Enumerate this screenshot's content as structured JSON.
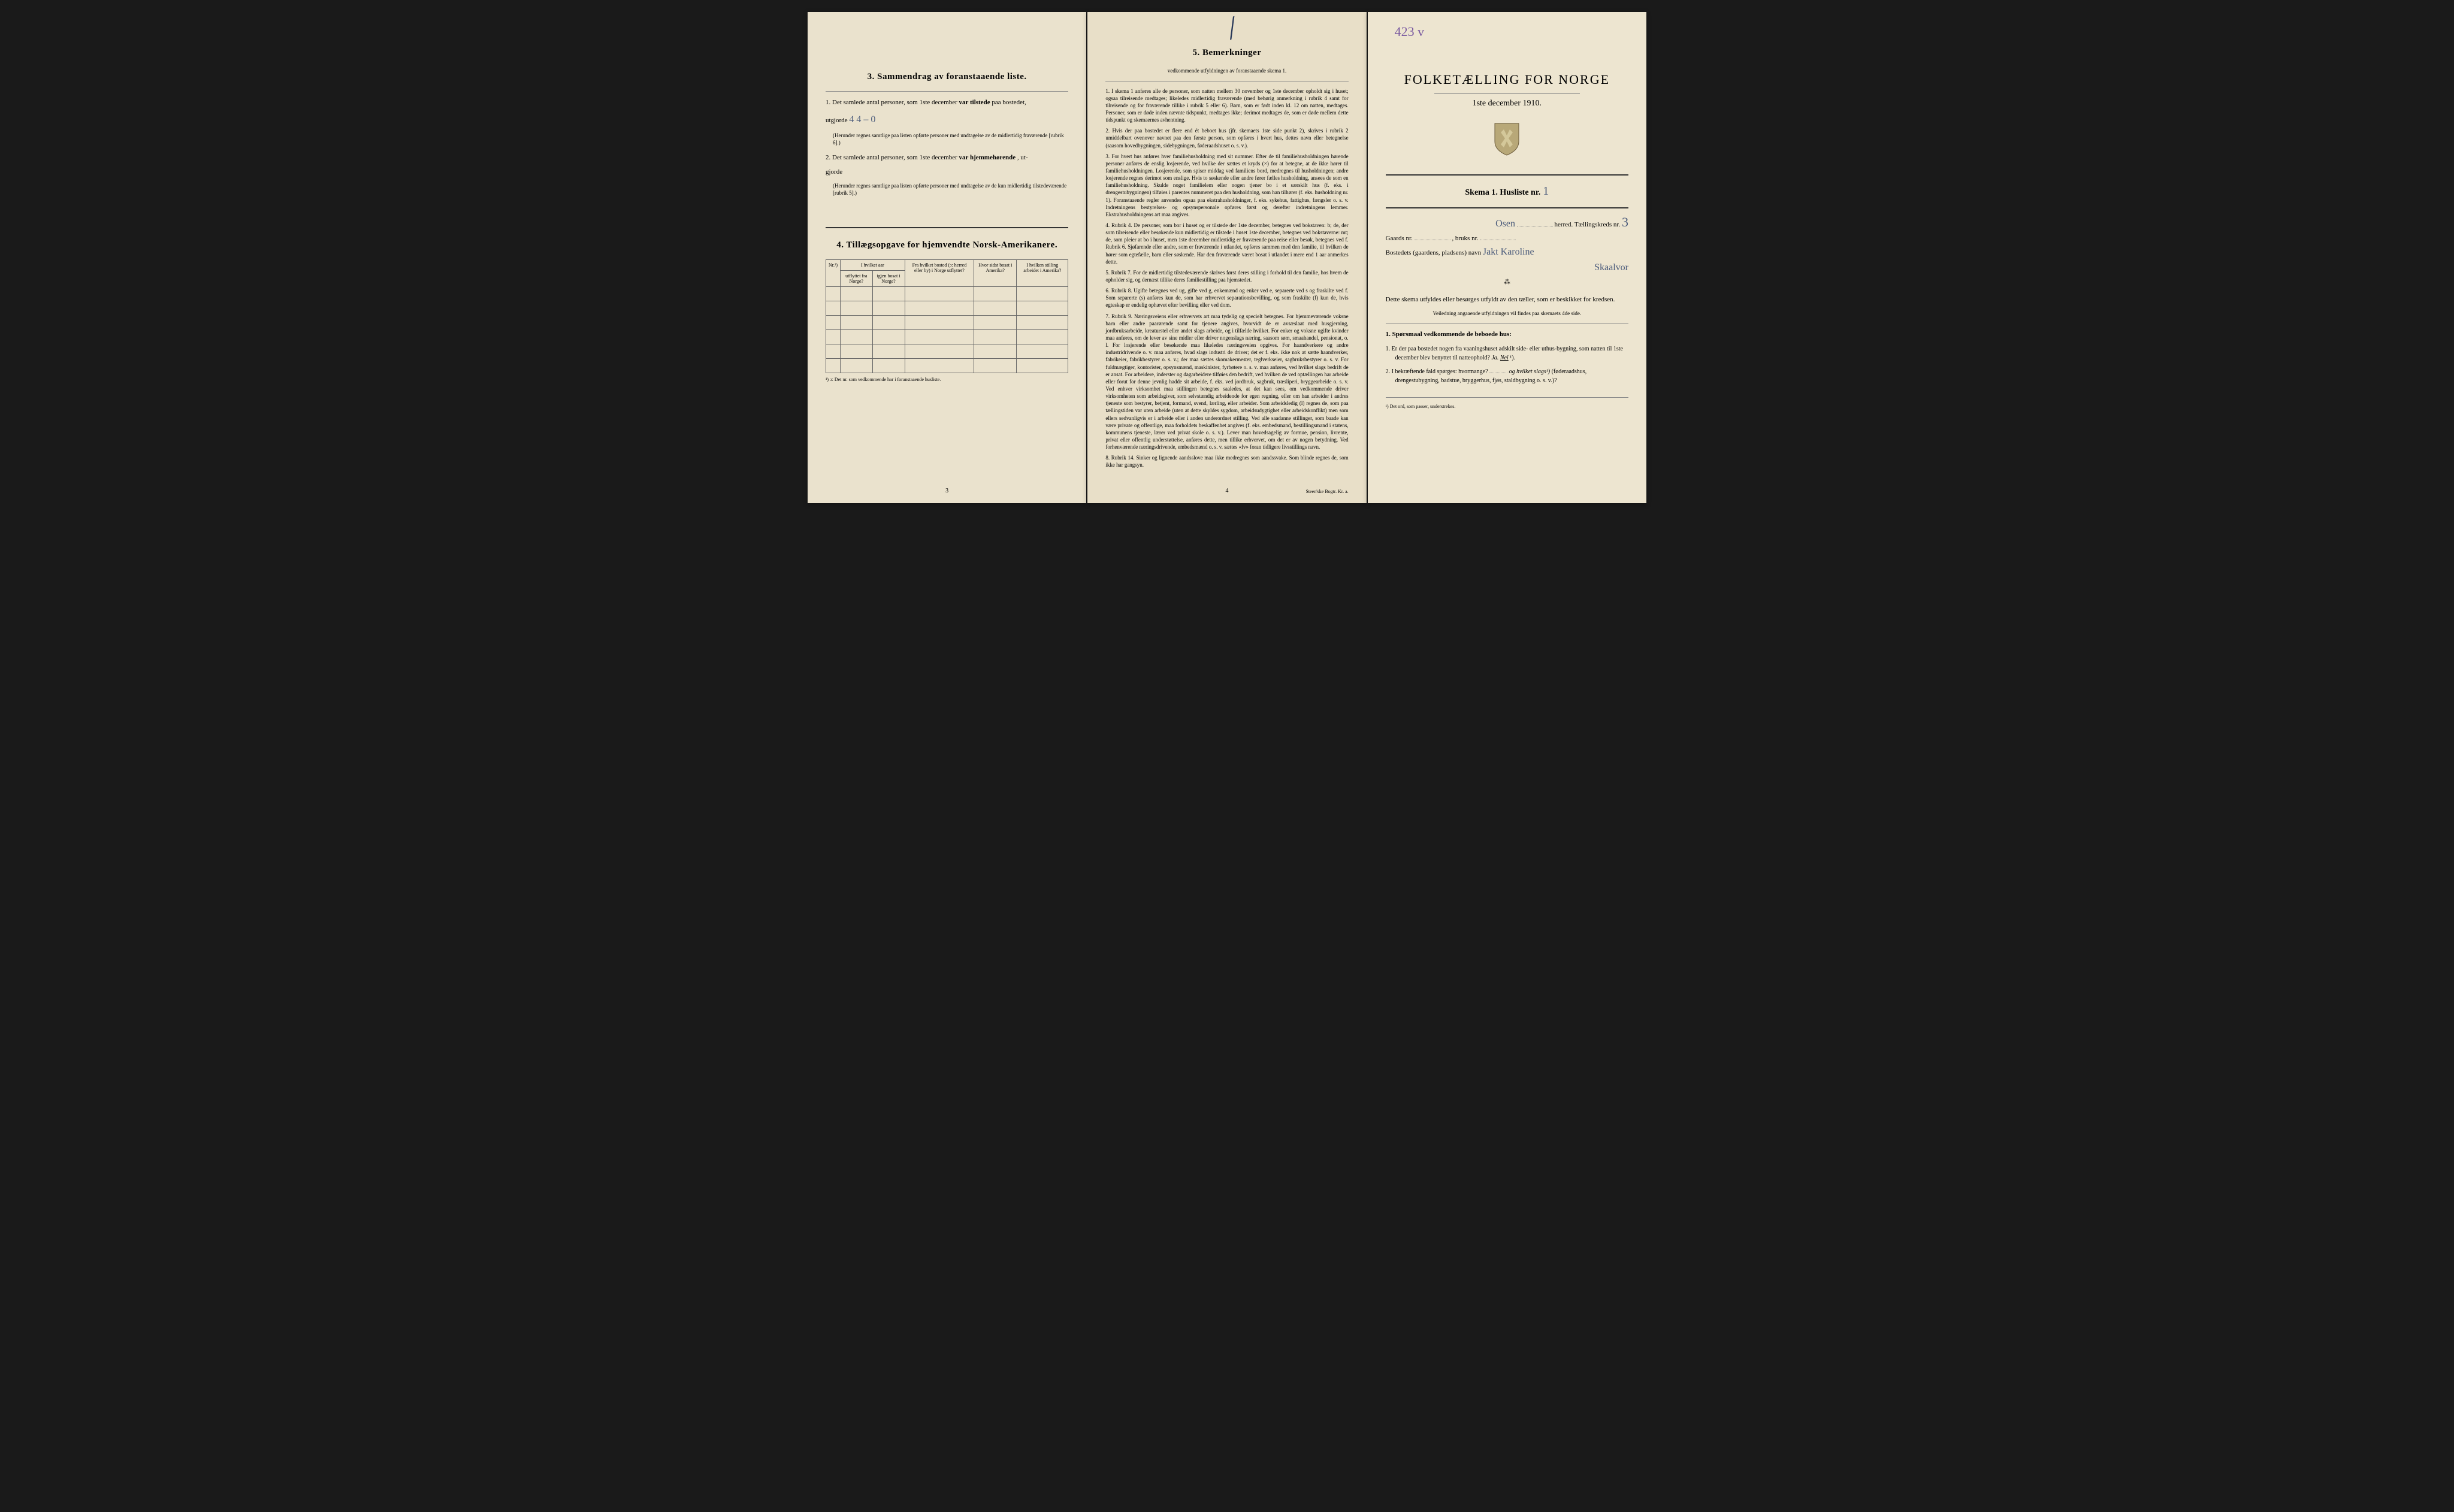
{
  "page1": {
    "section3": {
      "title": "3.  Sammendrag av foranstaaende liste.",
      "item1_pre": "1. Det samlede antal personer, som 1ste december",
      "item1_bold": "var tilstede",
      "item1_post": "paa bostedet,",
      "item1_line2": "utgjorde",
      "handwritten_count": "4   4 – 0",
      "item1_note": "(Herunder regnes samtlige paa listen opførte personer med undtagelse av de midlertidig fraværende [rubrik 6].)",
      "item2_pre": "2. Det samlede antal personer, som 1ste december",
      "item2_bold": "var hjemmehørende",
      "item2_post": ", ut-",
      "item2_line2": "gjorde",
      "item2_note": "(Herunder regnes samtlige paa listen opførte personer med undtagelse av de kun midlertidig tilstedeværende [rubrik 5].)"
    },
    "section4": {
      "title": "4.  Tillægsopgave for hjemvendte Norsk-Amerikanere.",
      "headers": {
        "nr": "Nr.¹)",
        "col1a": "I hvilket aar",
        "col1b": "utflyttet fra Norge?",
        "col1c": "igjen bosat i Norge?",
        "col2": "Fra hvilket bosted (ɔ: herred eller by) i Norge utflyttet?",
        "col3": "Hvor sidst bosat i Amerika?",
        "col4": "I hvilken stilling arbeidet i Amerika?"
      },
      "footnote": "¹) ɔ: Det nr. som vedkommende har i foranstaaende husliste."
    },
    "page_num": "3"
  },
  "page2": {
    "title": "5.  Bemerkninger",
    "subtitle": "vedkommende utfyldningen av foranstaaende skema 1.",
    "rules": [
      "1. I skema 1 anføres alle de personer, som natten mellem 30 november og 1ste december opholdt sig i huset; ogsaa tilreisende medtages; likeledes midlertidig fraværende (med behørig anmerkning i rubrik 4 samt for tilreisende og for fraværende tillike i rubrik 5 eller 6). Barn, som er født inden kl. 12 om natten, medtages. Personer, som er døde inden nævnte tidspunkt, medtages ikke; derimot medtages de, som er døde mellem dette tidspunkt og skemaernes avhentning.",
      "2. Hvis der paa bostedet er flere end ét beboet hus (jfr. skemaets 1ste side punkt 2), skrives i rubrik 2 umiddelbart ovenover navnet paa den første person, som opføres i hvert hus, dettes navn eller betegnelse (saasom hovedbygningen, sidebygningen, føderaadshuset o. s. v.).",
      "3. For hvert hus anføres hver familiehusholdning med sit nummer. Efter de til familiehusholdningen hørende personer anføres de enslig losjerende, ved hvilke der sættes et kryds (×) for at betegne, at de ikke hører til familiehusholdningen. Losjerende, som spiser middag ved familiens bord, medregnes til husholdningen; andre losjerende regnes derimot som enslige. Hvis to søskende eller andre fører fælles husholdning, ansees de som en familiehusholdning. Skulde noget familielem eller nogen tjener bo i et særskilt hus (f. eks. i drengestubygningen) tilføies i parentes nummeret paa den husholdning, som han tilhører (f. eks. husholdning nr. 1). Foranstaaende regler anvendes ogsaa paa ekstrahusholdninger, f. eks. sykehus, fattighus, fængsler o. s. v. Indretningens bestyrelses- og opsynspersonale opføres først og derefter indretningens lemmer. Ekstrahusholdningens art maa angives.",
      "4. Rubrik 4. De personer, som bor i huset og er tilstede der 1ste december, betegnes ved bokstaven: b; de, der som tilreisende eller besøkende kun midlertidig er tilstede i huset 1ste december, betegnes ved bokstaverne: mt; de, som pleier at bo i huset, men 1ste december midlertidig er fraværende paa reise eller besøk, betegnes ved f. Rubrik 6. Sjøfarende eller andre, som er fraværende i utlandet, opføres sammen med den familie, til hvilken de hører som egtefælle, barn eller søskende. Har den fraværende været bosat i utlandet i mere end 1 aar anmerkes dette.",
      "5. Rubrik 7. For de midlertidig tilstedeværende skrives først deres stilling i forhold til den familie, hos hvem de opholder sig, og dernæst tillike deres familiestilling paa hjemstedet.",
      "6. Rubrik 8. Ugifte betegnes ved ug, gifte ved g, enkemænd og enker ved e, separerte ved s og fraskilte ved f. Som separerte (s) anføres kun de, som har erhvervet separationsbevilling, og som fraskilte (f) kun de, hvis egteskap er endelig ophævet efter bevilling eller ved dom.",
      "7. Rubrik 9. Næringsveiens eller erhvervets art maa tydelig og specielt betegnes. For hjemmeværende voksne barn eller andre paarørende samt for tjenere angives, hvorvidt de er avsæslaat med husgjerning, jordbruksarbeide, kreaturstel eller andet slags arbeide, og i tilfælde hvilket. For enker og voksne ugifte kvinder maa anføres, om de lever av sine midler eller driver nogenslags næring, saasom søm, smaahandel, pensionat, o. l. For losjerende eller besøkende maa likeledes næringsveien opgives. For haandverkere og andre industridrivende o. v. maa anføres, hvad slags industri de driver; det er f. eks. ikke nok at sætte haandverker, fabrikeier, fabrikbestyrer o. s. v.; der maa sættes skomakermester, teglverkseier, sagbruksbestyrer o. s. v. For fuldmægtiger, kontorister, opsynsmænd, maskinister, fyrbøtere o. s. v. maa anføres, ved hvilket slags bedrift de er ansat. For arbeidere, inderster og dagarbeidere tilføies den bedrift, ved hvilken de ved optællingen har arbeide eller forut for denne jevnlig hadde sit arbeide, f. eks. ved jordbruk, sagbruk, træsliperi, bryggearbeide o. s. v. Ved enhver virksomhet maa stillingen betegnes saaledes, at det kan sees, om vedkommende driver virksomheten som arbeidsgiver, som selvstændig arbeidende for egen regning, eller om han arbeider i andres tjeneste som bestyrer, betjent, formand, svend, lærling, eller arbeider. Som arbeidsledig (l) regnes de, som paa tællingstiden var uten arbeide (uten at dette skyldes sygdom, arbeidsudygtighet eller arbeidskonflikt) men som ellers sedvanligvis er i arbeide eller i anden underordnet stilling. Ved alle saadanne stillinger, som baade kan være private og offentlige, maa forholdets beskaffenhet angives (f. eks. embedsmand, bestillingsmand i statens, kommunens tjeneste, lærer ved privat skole o. s. v.). Lever man hovedsagelig av formue, pension, livrente, privat eller offentlig understøttelse, anføres dette, men tillike erhvervet, om det er av nogen betydning. Ved forhenværende næringsdrivende, embedsmænd o. s. v. sættes «fv» foran tidligere livsstillings navn.",
      "8. Rubrik 14. Sinker og lignende aandsslove maa ikke medregnes som aandssvake. Som blinde regnes de, som ikke har gangsyn."
    ],
    "page_num": "4",
    "printer": "Steen'ske Bogtr. Kr. a."
  },
  "page3": {
    "handwritten_top": "423 v",
    "title": "FOLKETÆLLING FOR NORGE",
    "date": "1ste december 1910.",
    "schema_label": "Skema 1.  Husliste nr.",
    "husliste_nr": "1",
    "herred_value": "Osen",
    "herred_label": "herred.  Tællingskreds nr.",
    "kreds_nr": "3",
    "gaards_label": "Gaards nr.",
    "bruks_label": ", bruks nr.",
    "bosted_label": "Bostedets (gaardens, pladsens) navn",
    "bosted_value": "Jakt Karoline",
    "bosted_value2": "Skaalvor",
    "instruction": "Dette skema utfyldes eller besørges utfyldt av den tæller, som er beskikket for kredsen.",
    "instruction2": "Veiledning angaaende utfyldningen vil findes paa skemaets 4de side.",
    "q_header": "1. Spørsmaal vedkommende de beboede hus:",
    "q1": "1. Er der paa bostedet nogen fra vaaningshuset adskilt side- eller uthus-bygning, som natten til 1ste december blev benyttet til natteophold?",
    "q1_ja": "Ja.",
    "q1_nei": "Nei",
    "q1_sup": "¹).",
    "q2": "2. I bekræftende fald spørges: hvormange?",
    "q2_mid": "og hvilket slags¹)",
    "q2_post": "(føderaadshus, drengestubygning, badstue, bryggerhus, fjøs, staldbygning o. s. v.)?",
    "footnote": "¹) Det ord, som passer, understrekes."
  }
}
